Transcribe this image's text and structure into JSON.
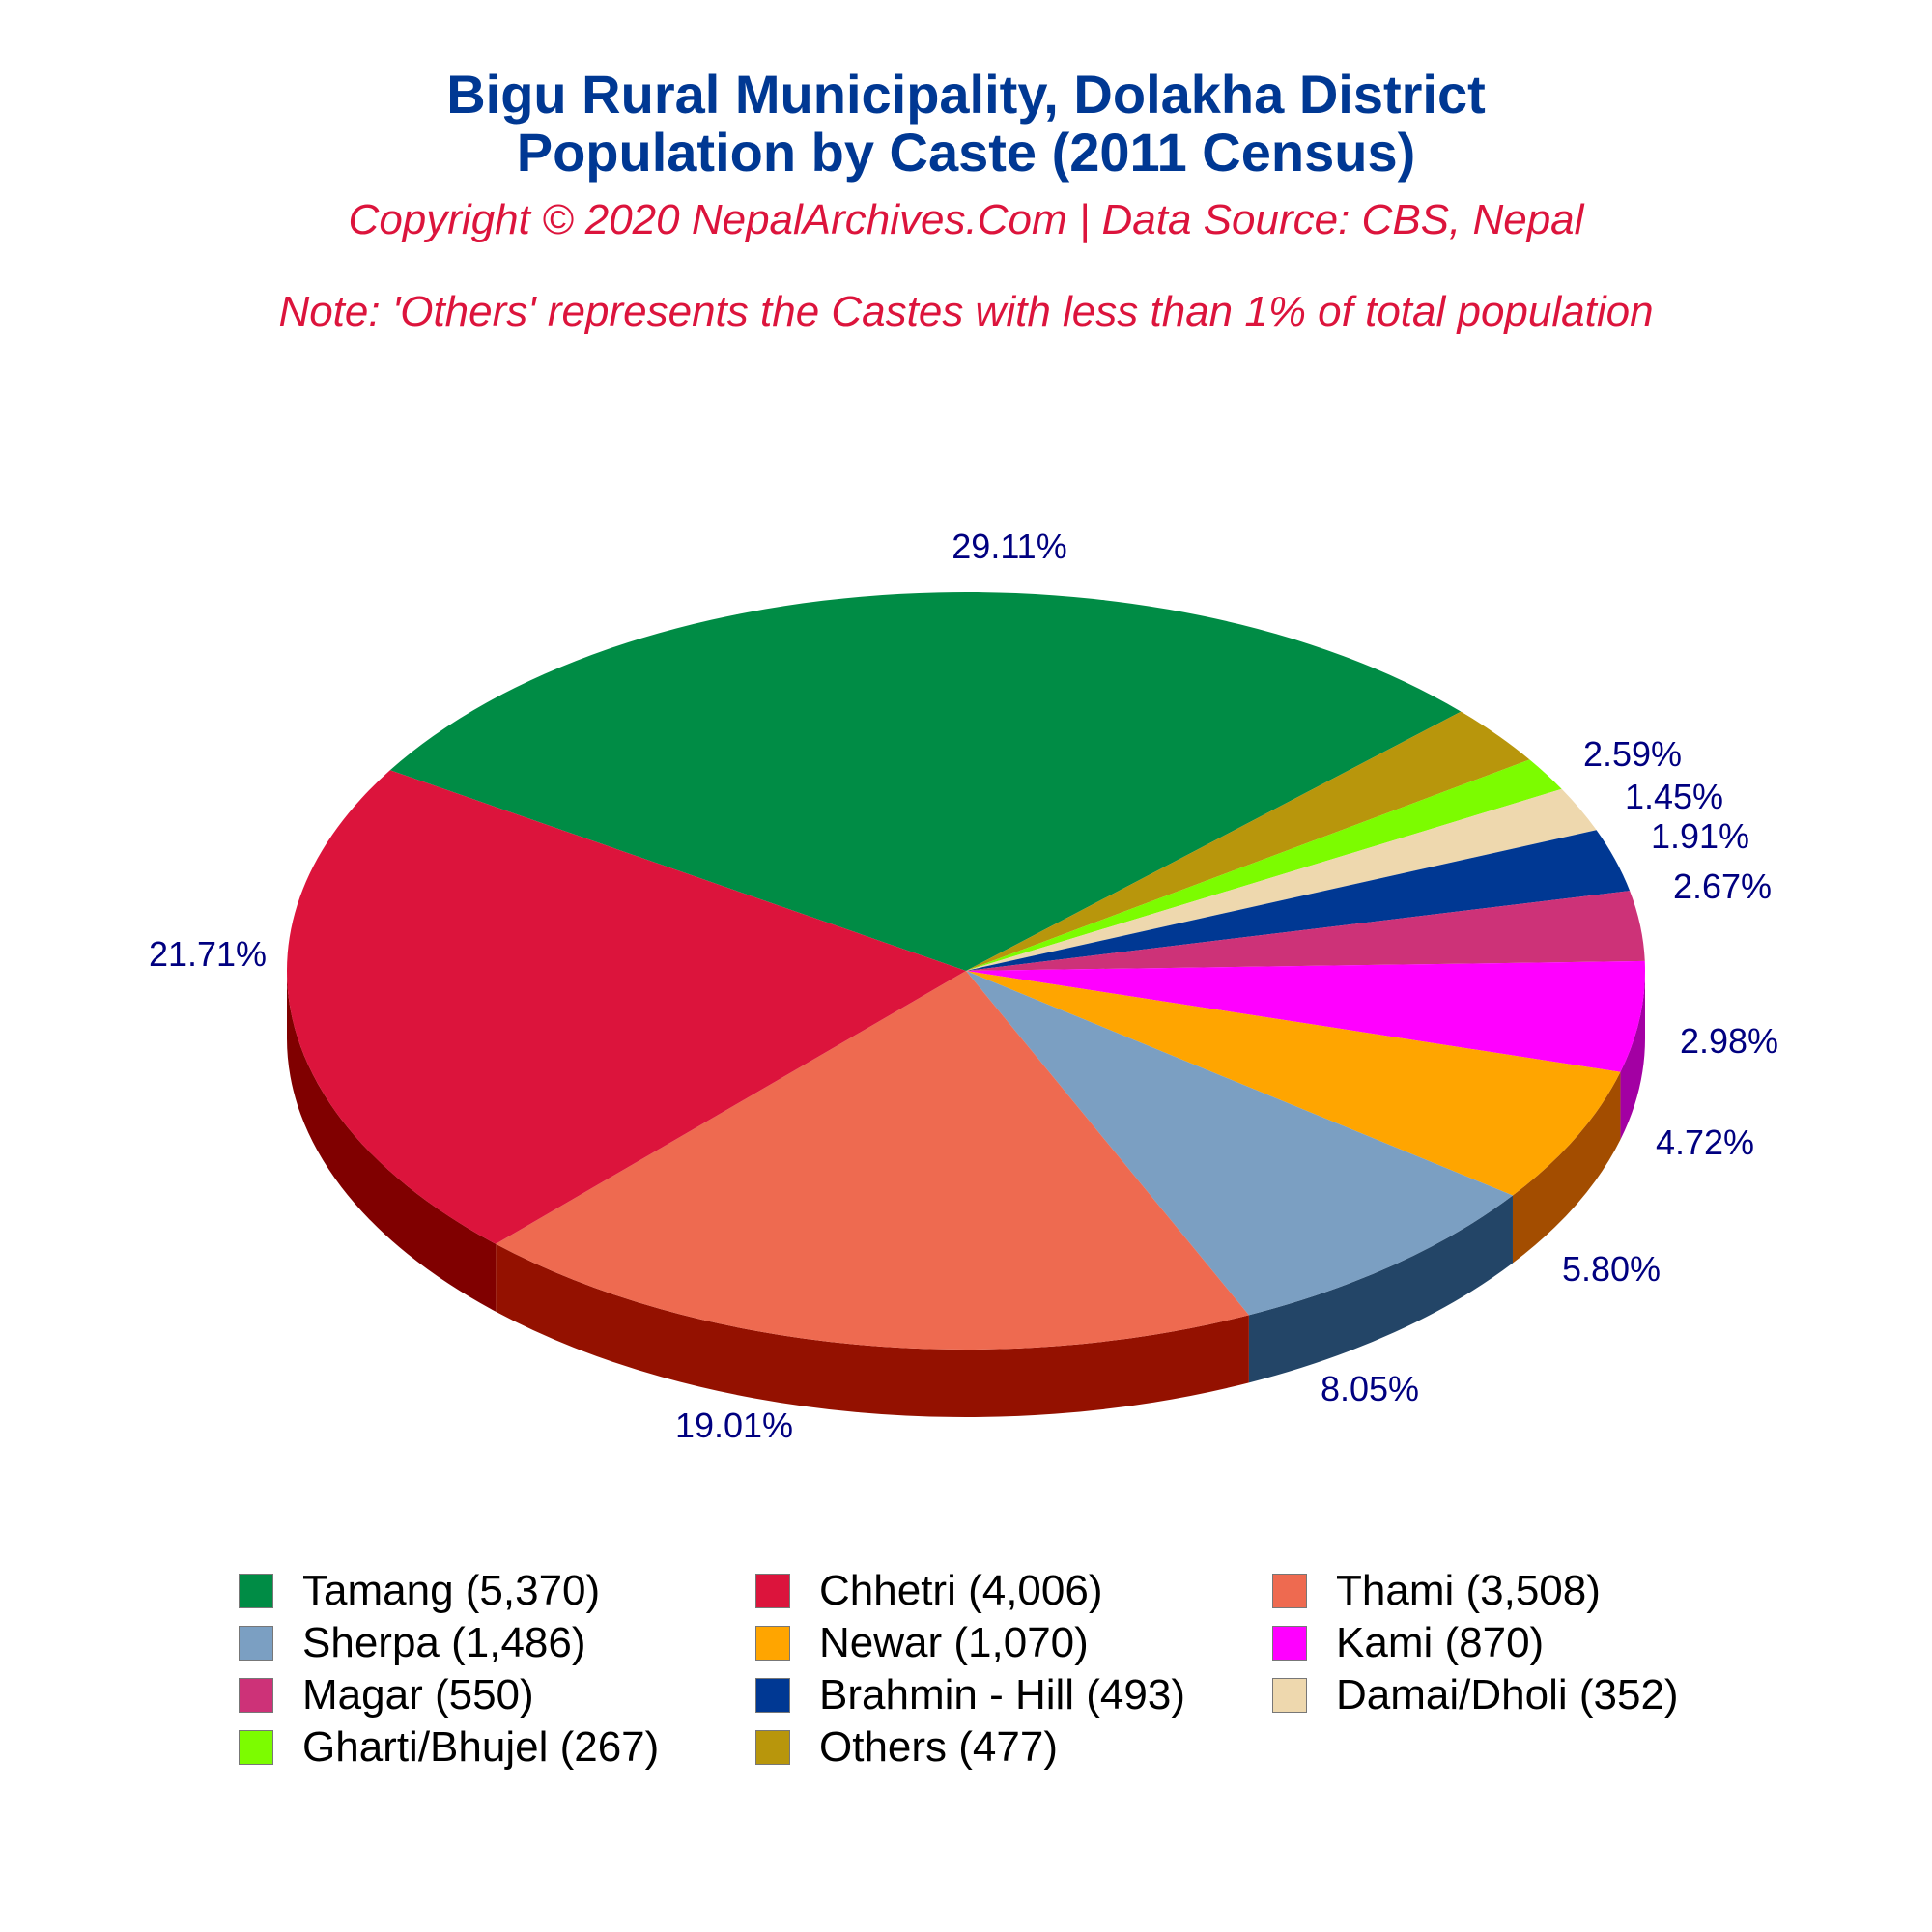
{
  "header": {
    "title_line1": "Bigu Rural Municipality, Dolakha District",
    "title_line2": "Population by Caste (2011 Census)",
    "copyright": "Copyright © 2020 NepalArchives.Com | Data Source: CBS, Nepal",
    "note": "Note: 'Others' represents the Castes with less than 1% of total population"
  },
  "colors": {
    "title": "#003893",
    "subtitle": "#dc143c",
    "percent_label": "#000080"
  },
  "chart_data": {
    "type": "pie",
    "style": "3d",
    "title": "Bigu Rural Municipality, Dolakha District — Population by Caste (2011 Census)",
    "legend_position": "bottom",
    "categories": [
      "Tamang",
      "Chhetri",
      "Thami",
      "Sherpa",
      "Newar",
      "Kami",
      "Magar",
      "Brahmin - Hill",
      "Damai/Dholi",
      "Gharti/Bhujel",
      "Others"
    ],
    "values": [
      5370,
      4006,
      3508,
      1486,
      1070,
      870,
      550,
      493,
      352,
      267,
      477
    ],
    "percentages": [
      29.11,
      21.71,
      19.01,
      8.05,
      5.8,
      4.72,
      2.98,
      2.67,
      1.91,
      1.45,
      2.59
    ],
    "slices": [
      {
        "name": "Tamang",
        "value": 5370,
        "pct_label": "29.11%",
        "color": "#008c45",
        "side": "#005a2b"
      },
      {
        "name": "Chhetri",
        "value": 4006,
        "pct_label": "21.71%",
        "color": "#dc143c",
        "side": "#800000"
      },
      {
        "name": "Thami",
        "value": 3508,
        "pct_label": "19.01%",
        "color": "#ee6a50",
        "side": "#941100"
      },
      {
        "name": "Sherpa",
        "value": 1486,
        "pct_label": "8.05%",
        "color": "#7b9fc2",
        "side": "#234567"
      },
      {
        "name": "Newar",
        "value": 1070,
        "pct_label": "5.80%",
        "color": "#ffa500",
        "side": "#a34d00"
      },
      {
        "name": "Kami",
        "value": 870,
        "pct_label": "4.72%",
        "color": "#ff00ff",
        "side": "#a300a3"
      },
      {
        "name": "Magar",
        "value": 550,
        "pct_label": "2.98%",
        "color": "#cd3278",
        "side": "#800040"
      },
      {
        "name": "Brahmin - Hill",
        "value": 493,
        "pct_label": "2.67%",
        "color": "#003893",
        "side": "#001f52"
      },
      {
        "name": "Damai/Dholi",
        "value": 352,
        "pct_label": "1.91%",
        "color": "#eed8ae",
        "side": "#9c8c6e"
      },
      {
        "name": "Gharti/Bhujel",
        "value": 267,
        "pct_label": "1.45%",
        "color": "#7cfc00",
        "side": "#4c9a00"
      },
      {
        "name": "Others",
        "value": 477,
        "pct_label": "2.59%",
        "color": "#b8960c",
        "side": "#6f5a07"
      }
    ]
  },
  "legend": {
    "items": [
      {
        "label": "Tamang (5,370)",
        "color": "#008c45"
      },
      {
        "label": "Chhetri (4,006)",
        "color": "#dc143c"
      },
      {
        "label": "Thami (3,508)",
        "color": "#ee6a50"
      },
      {
        "label": "Sherpa (1,486)",
        "color": "#7b9fc2"
      },
      {
        "label": "Newar (1,070)",
        "color": "#ffa500"
      },
      {
        "label": "Kami (870)",
        "color": "#ff00ff"
      },
      {
        "label": "Magar (550)",
        "color": "#cd3278"
      },
      {
        "label": "Brahmin - Hill (493)",
        "color": "#003893"
      },
      {
        "label": "Damai/Dholi (352)",
        "color": "#eed8ae"
      },
      {
        "label": "Gharti/Bhujel (267)",
        "color": "#7cfc00"
      },
      {
        "label": "Others (477)",
        "color": "#b8960c"
      }
    ]
  }
}
